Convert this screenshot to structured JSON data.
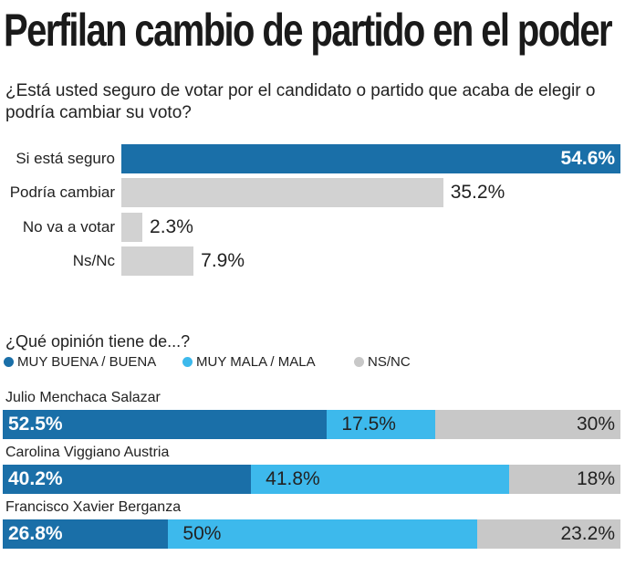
{
  "title": "Perfilan cambio de partido en el poder",
  "chart_data": [
    {
      "type": "bar",
      "title": "¿Está usted seguro de votar por el candidato o partido que acaba de elegir o podría cambiar su voto?",
      "categories": [
        "Si está seguro",
        "Podría cambiar",
        "No va a votar",
        "Ns/Nc"
      ],
      "values": [
        54.6,
        35.2,
        2.3,
        7.9
      ],
      "labels": [
        "54.6%",
        "35.2%",
        "2.3%",
        "7.9%"
      ],
      "colors": [
        "#1a6fa8",
        "#d2d2d2",
        "#d2d2d2",
        "#d2d2d2"
      ]
    },
    {
      "type": "bar",
      "stacked": true,
      "title": "¿Qué opinión tiene de...?",
      "legend": [
        {
          "name": "MUY BUENA / BUENA",
          "color": "#1a6fa8"
        },
        {
          "name": "MUY MALA / MALA",
          "color": "#3db9ec"
        },
        {
          "name": "NS/NC",
          "color": "#c8c8c8"
        }
      ],
      "categories": [
        "Julio Menchaca Salazar",
        "Carolina Viggiano Austria",
        "Francisco Xavier Berganza"
      ],
      "series": [
        {
          "name": "MUY BUENA / BUENA",
          "values": [
            52.5,
            40.2,
            26.8
          ],
          "labels": [
            "52.5%",
            "40.2%",
            "26.8%"
          ]
        },
        {
          "name": "MUY MALA / MALA",
          "values": [
            17.5,
            41.8,
            50
          ],
          "labels": [
            "17.5%",
            "41.8%",
            "50%"
          ]
        },
        {
          "name": "NS/NC",
          "values": [
            30,
            18,
            23.2
          ],
          "labels": [
            "30%",
            "18%",
            "23.2%"
          ]
        }
      ]
    }
  ]
}
